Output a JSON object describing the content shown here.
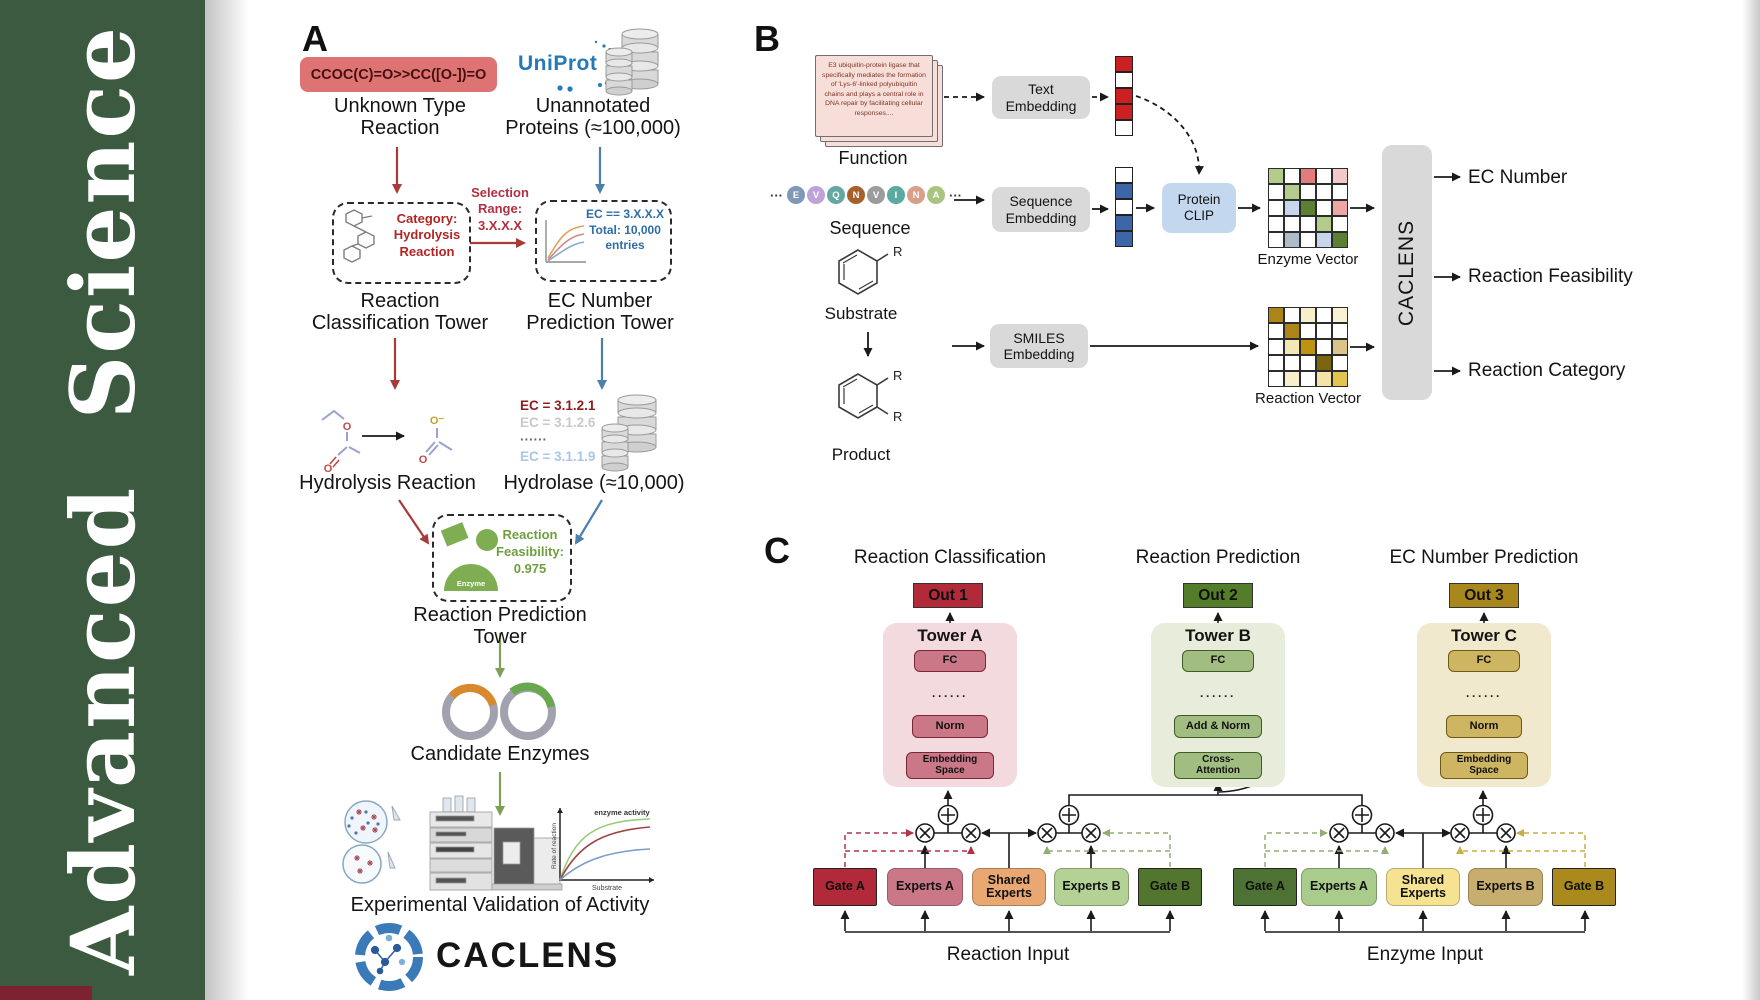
{
  "journal": {
    "name": "Advanced  Science",
    "band_color": "#3c5a40"
  },
  "panel_a": {
    "label": "A",
    "smiles": "CCOC(C)=O>>CC([O-])=O",
    "unknown_type": "Unknown Type\nReaction",
    "uniprot": "UniProt",
    "unannotated": "Unannotated\nProteins (≈100,000)",
    "selection": "Selection\nRange:\n3.X.X.X",
    "category_box": "Category:\nHydrolysis\nReaction",
    "ec_box": "EC == 3.X.X.X\nTotal: 10,000\nentries",
    "classification_tower": "Reaction\nClassification Tower",
    "ec_tower": "EC Number\nPrediction Tower",
    "hydrolysis": "Hydrolysis Reaction",
    "ec_list": [
      {
        "text": "EC = 3.1.2.1",
        "color": "#8f1d1d"
      },
      {
        "text": "EC = 3.1.2.6",
        "color": "#c9c9c9"
      },
      {
        "text": "······",
        "color": "#6a6a6a"
      },
      {
        "text": "EC = 3.1.1.9",
        "color": "#a9c6e8"
      }
    ],
    "hydrolase": "Hydrolase (≈10,000)",
    "enzyme_label": "Enzyme",
    "feasibility": "Reaction\nFeasibility:\n0.975",
    "prediction_tower": "Reaction Prediction Tower",
    "candidates": "Candidate Enzymes",
    "graph": {
      "curve_label": "enzyme activity",
      "ylabel": "Rate of reaction",
      "xlabel": "Substrate"
    },
    "validation": "Experimental Validation of Activity",
    "wordmark": "CACLENS"
  },
  "panel_b": {
    "label": "B",
    "function_card": "E3 ubiquitin-protein ligase that specifically mediates the formation of 'Lys-6'-linked polyubiquitin chains and plays a central role in DNA repair by facilitating cellular responses....",
    "function": "Function",
    "ellipsis": "···",
    "residues": [
      {
        "letter": "E",
        "color": "#8099b8"
      },
      {
        "letter": "V",
        "color": "#bda3d8"
      },
      {
        "letter": "Q",
        "color": "#63a8a2"
      },
      {
        "letter": "N",
        "color": "#a7602c"
      },
      {
        "letter": "V",
        "color": "#9c9c9c"
      },
      {
        "letter": "I",
        "color": "#5baaa1"
      },
      {
        "letter": "N",
        "color": "#d9a089"
      },
      {
        "letter": "A",
        "color": "#a9c47e"
      }
    ],
    "sequence": "Sequence",
    "substituent": "R",
    "substrate": "Substrate",
    "product": "Product",
    "text_embedding": "Text\nEmbedding",
    "sequence_embedding": "Sequence\nEmbedding",
    "smiles_embedding": "SMILES\nEmbedding",
    "protein_clip": "Protein\nCLIP",
    "text_vector": [
      "#cc1f1f",
      "#ffffff",
      "#cc1f1f",
      "#cc1f1f",
      "#ffffff"
    ],
    "sequence_vector": [
      "#ffffff",
      "#3c66a6",
      "#ffffff",
      "#3c66a6",
      "#3c66a6"
    ],
    "enzyme_vector": {
      "label": "Enzyme Vector",
      "cells": [
        [
          "#b3cc8b",
          "#ffffff",
          "#e37c7c",
          "#ffffff",
          "#f5c9c9"
        ],
        [
          "#ffffff",
          "#b3cc8b",
          "#ffffff",
          "#ffffff",
          "#ffffff"
        ],
        [
          "#ffffff",
          "#c6d7ec",
          "#5d7f31",
          "#ffffff",
          "#eda6a6"
        ],
        [
          "#ffffff",
          "#ffffff",
          "#ffffff",
          "#b3cc8b",
          "#ffffff"
        ],
        [
          "#ffffff",
          "#adbcc9",
          "#ffffff",
          "#c6d7ec",
          "#5d7f31"
        ]
      ]
    },
    "reaction_vector": {
      "label": "Reaction Vector",
      "cells": [
        [
          "#ad841a",
          "#ffffff",
          "#f7eecb",
          "#ffffff",
          "#f9f1d4"
        ],
        [
          "#ffffff",
          "#ad841a",
          "#ffffff",
          "#ffffff",
          "#ffffff"
        ],
        [
          "#ffffff",
          "#f3e7b5",
          "#bf9210",
          "#ffffff",
          "#dcc489"
        ],
        [
          "#ffffff",
          "#ffffff",
          "#ffffff",
          "#7c650f",
          "#ffffff"
        ],
        [
          "#ffffff",
          "#f7eecb",
          "#ffffff",
          "#f3e3a8",
          "#e3c44f"
        ]
      ]
    },
    "caclens_bar": "CACLENS",
    "outputs": [
      "EC Number",
      "Reaction Feasibility",
      "Reaction Category"
    ]
  },
  "panel_c": {
    "label": "C",
    "columns": [
      {
        "title": "Reaction Classification",
        "out": "Out 1",
        "tower": "Tower A",
        "fc": "FC",
        "dots": "······",
        "mid": "Norm",
        "bottom": "Embedding\nSpace",
        "out_bg": "#b2293a",
        "tower_bg": "#f2dade",
        "box_bg": "#ca7888",
        "box_border": "#7c2533"
      },
      {
        "title": "Reaction Prediction",
        "out": "Out 2",
        "tower": "Tower B",
        "fc": "FC",
        "dots": "······",
        "mid": "Add & Norm",
        "bottom": "Cross-\nAttention",
        "out_bg": "#537c2b",
        "tower_bg": "#e7edda",
        "box_bg": "#a2bd81",
        "box_border": "#3f5c26"
      },
      {
        "title": "EC Number Prediction",
        "out": "Out 3",
        "tower": "Tower C",
        "fc": "FC",
        "dots": "······",
        "mid": "Norm",
        "bottom": "Embedding\nSpace",
        "out_bg": "#a8871c",
        "tower_bg": "#f1e9cd",
        "box_bg": "#cdb562",
        "box_border": "#6e5a17"
      }
    ],
    "moe": [
      {
        "input": "Reaction Input",
        "boxes": [
          {
            "label": "Gate A",
            "bg": "#b2293a"
          },
          {
            "label": "Experts A",
            "bg": "#ca7888"
          },
          {
            "label": "Shared\nExperts",
            "bg": "#e9a771"
          },
          {
            "label": "Experts B",
            "bg": "#b4d295"
          },
          {
            "label": "Gate B",
            "bg": "#53762e"
          }
        ]
      },
      {
        "input": "Enzyme Input",
        "boxes": [
          {
            "label": "Gate A",
            "bg": "#4e7134"
          },
          {
            "label": "Experts A",
            "bg": "#a9cb8c"
          },
          {
            "label": "Shared\nExperts",
            "bg": "#f6e392"
          },
          {
            "label": "Experts B",
            "bg": "#c7ad6e"
          },
          {
            "label": "Gate B",
            "bg": "#ab8a1d"
          }
        ]
      }
    ]
  }
}
